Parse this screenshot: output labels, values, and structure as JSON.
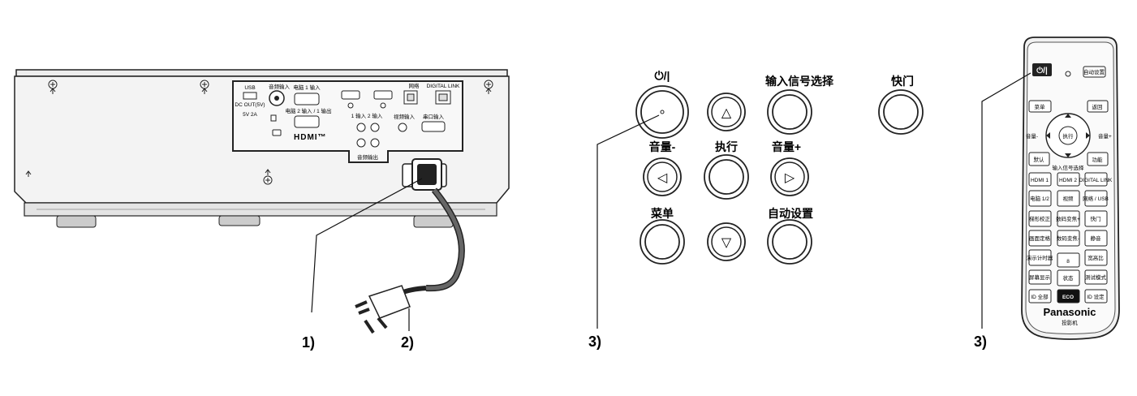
{
  "callouts": {
    "power_cord_connector": "1)",
    "power_plug": "2)",
    "power_button_panel": "3)",
    "power_button_remote": "3)"
  },
  "projector_rear": {
    "ports": {
      "usb": "USB",
      "usb_sub1": "DC OUT(5V)",
      "usb_sub2": "5V 2A",
      "audio_in": "音频输入",
      "computer1_in": "电脑 1 输入",
      "computer2_in": "电脑 2 输入 / 1 输出",
      "hdmi_in": "1 输入    2 输入",
      "video_in": "视频输入",
      "lan": "网络",
      "digital_link": "DIGITAL LINK",
      "serial_in": "串口输入",
      "hdmi_logo": "HDMI™",
      "audio_lr": "音频输出"
    }
  },
  "control_panel": {
    "power_label": "⏻/|",
    "input_select_label": "输入信号选择",
    "shutter_label": "快门",
    "volume_down_label": "音量-",
    "enter_label": "执行",
    "volume_up_label": "音量+",
    "menu_label": "菜单",
    "auto_setup_label": "自动设置",
    "up_symbol": "△",
    "left_symbol": "◁",
    "right_symbol": "▷",
    "down_symbol": "▽"
  },
  "remote": {
    "power": "⏻/|",
    "auto_setup": "自动设置",
    "menu": "菜单",
    "return": "返回",
    "enter": "执行",
    "volume_minus": "音量-",
    "volume_plus": "音量+",
    "default": "默认",
    "function": "功能",
    "input_select": "输入信号选择",
    "hdmi1": "HDMI 1",
    "hdmi2": "HDMI 2",
    "digital_link": "DIGITAL LINK",
    "computer": "电脑 1/2",
    "video": "视频",
    "network_usb": "网络 / USB",
    "keystone": "梯形校正",
    "zoom_plus": "数码变焦+",
    "shutter": "快门",
    "freeze": "画面定格",
    "zoom_minus": "数码变焦-",
    "mute": "静音",
    "p_timer": "演示计时器",
    "eight": "8",
    "aspect": "宽高比",
    "screen_info": "屏幕显示",
    "status": "状态",
    "test_pattern": "测试模式",
    "id_all": "ID 全部",
    "eco": "ECO",
    "id_set": "ID 设定",
    "brand": "Panasonic",
    "product": "投影机"
  }
}
